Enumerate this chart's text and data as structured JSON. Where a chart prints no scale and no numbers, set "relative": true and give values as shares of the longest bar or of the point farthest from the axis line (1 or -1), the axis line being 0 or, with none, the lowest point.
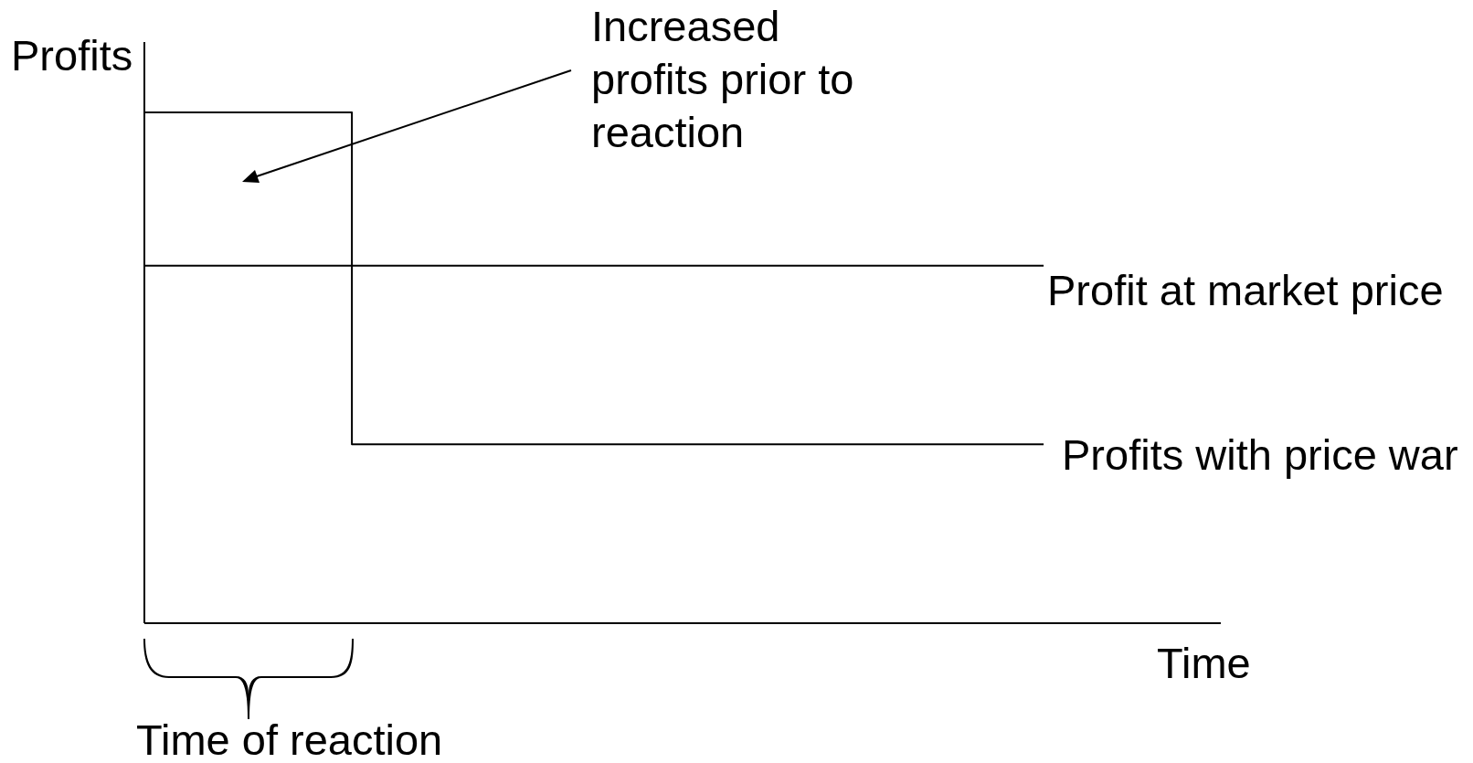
{
  "chart_data": {
    "type": "line",
    "relative": true,
    "xlabel": "Time",
    "ylabel": "Profits",
    "categories": [
      null,
      null,
      null,
      null,
      null,
      null,
      null,
      null,
      null,
      null,
      null,
      null,
      null,
      null
    ],
    "series": [
      {
        "name": "Profit at market price",
        "type": "line",
        "color": "#000000",
        "values": [
          0.7,
          0.7,
          0.7,
          0.7,
          0.7,
          0.7,
          0.7,
          0.7,
          0.7,
          0.7,
          0.7,
          0.7,
          0.7,
          0.7
        ]
      },
      {
        "name": "Profits with price war",
        "type": "step",
        "color": "#000000",
        "values": [
          1,
          1,
          1,
          0.35,
          0.35,
          0.35,
          0.35,
          0.35,
          0.35,
          0.35,
          0.35,
          0.35,
          0.35,
          0.35
        ]
      }
    ],
    "annotations": [
      "Increased profits prior to reaction",
      "Time of reaction"
    ]
  }
}
